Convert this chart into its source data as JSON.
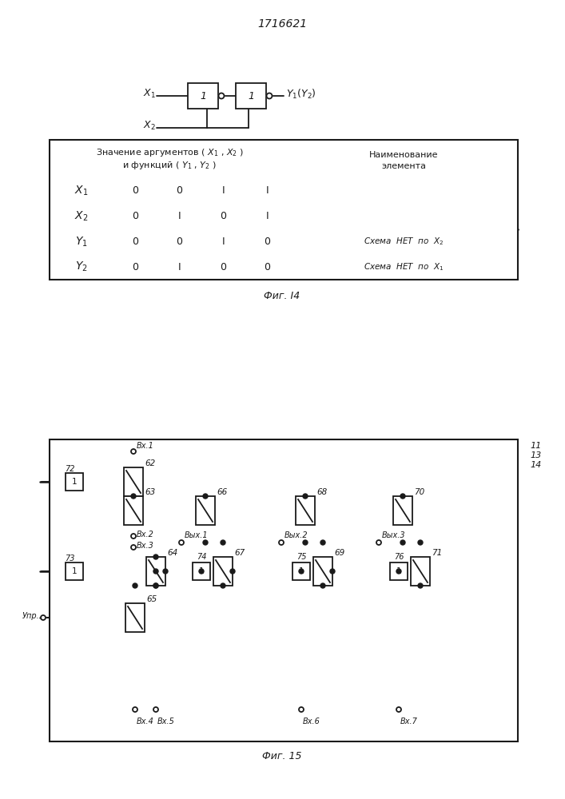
{
  "title": "1716621",
  "fig14_label": "Фиг. I4",
  "fig15_label": "Фиг. 15",
  "line_color": "#1a1a1a",
  "text_color": "#1a1a1a"
}
